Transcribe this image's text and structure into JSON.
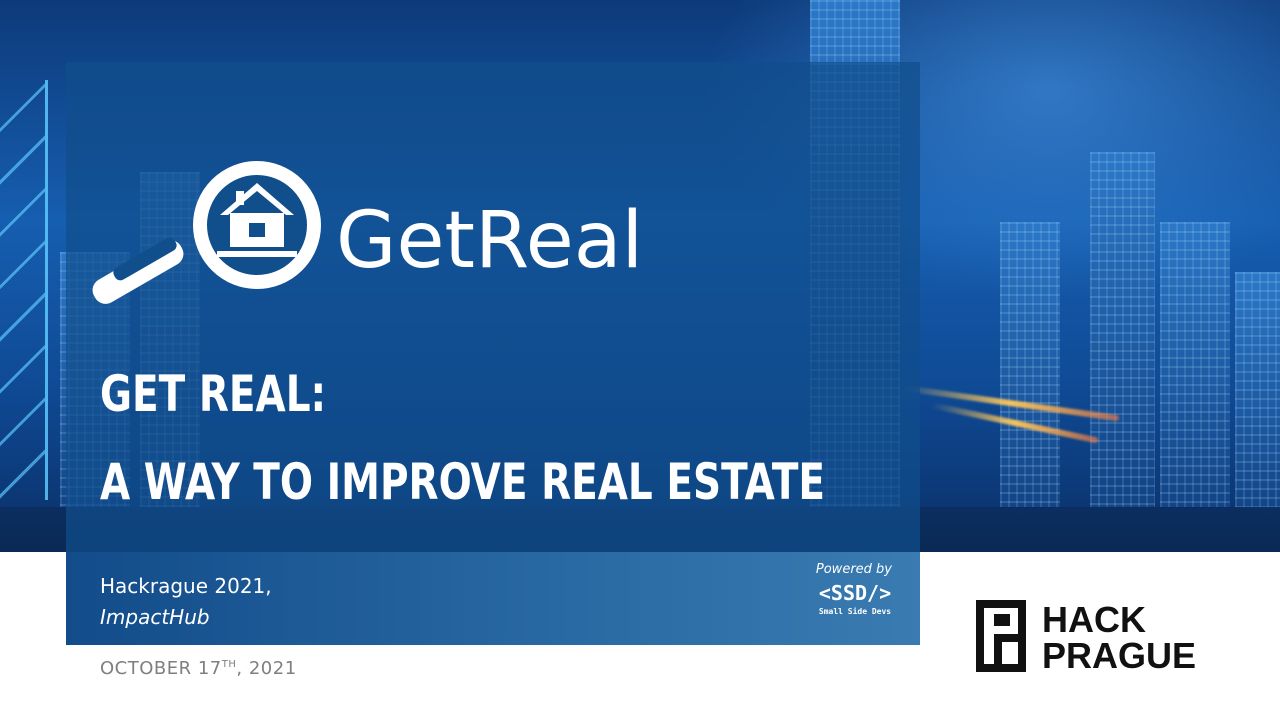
{
  "brand": {
    "name": "GetReal"
  },
  "headline": {
    "line1": "GET REAL:",
    "line2": "A WAY TO IMPROVE REAL ESTATE"
  },
  "event": {
    "line1": "Hackrague 2021,",
    "line2": "ImpactHub"
  },
  "powered_by": {
    "label": "Powered by",
    "logo": "<SSD/>",
    "tagline": "Small Side Devs"
  },
  "date": {
    "prefix": "OCTOBER 17",
    "suffix": "TH",
    "year": ", 2021"
  },
  "sponsor": {
    "line1": "HACK",
    "line2": "PRAGUE"
  },
  "colors": {
    "panel": "#114e8c",
    "accent_blue": "#1a5fb0",
    "date_gray": "#7f7f7f",
    "text_white": "#ffffff"
  },
  "icons": {
    "logo": "magnifier-house-icon",
    "sponsor": "hackprague-logo-icon"
  }
}
